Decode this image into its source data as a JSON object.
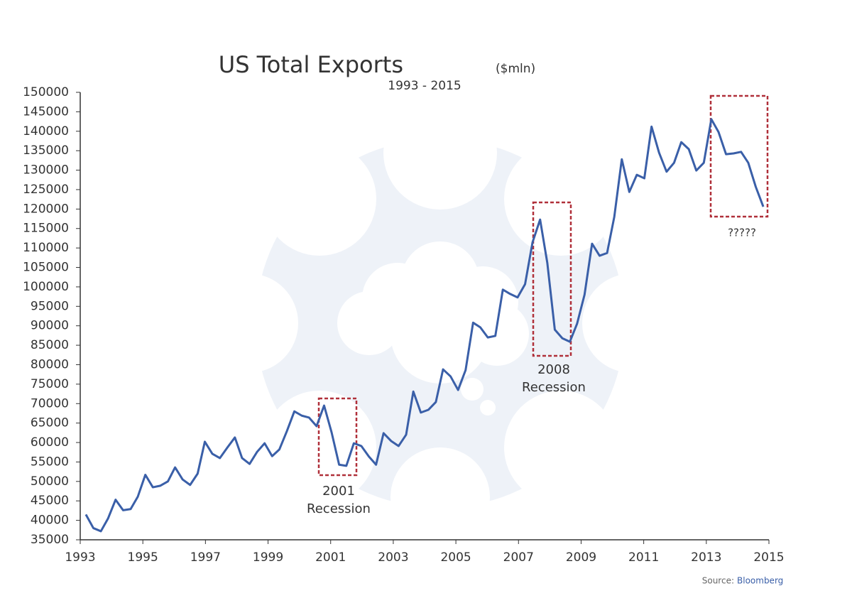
{
  "chart_data": {
    "type": "line",
    "title": "US Total Exports",
    "title_unit": "($mln)",
    "subtitle": "1993 - 2015",
    "source": {
      "label": "Source:",
      "name": "Bloomberg"
    },
    "x": [
      1993.18,
      1993.42,
      1993.66,
      1993.89,
      1994.13,
      1994.37,
      1994.61,
      1994.84,
      1995.08,
      1995.32,
      1995.56,
      1995.8,
      1996.03,
      1996.27,
      1996.51,
      1996.75,
      1996.98,
      1997.22,
      1997.46,
      1997.7,
      1997.94,
      1998.17,
      1998.41,
      1998.65,
      1998.89,
      1999.13,
      1999.36,
      1999.6,
      1999.84,
      2000.08,
      2000.31,
      2000.55,
      2000.79,
      2001.03,
      2001.27,
      2001.5,
      2001.74,
      2001.98,
      2002.22,
      2002.45,
      2002.69,
      2002.93,
      2003.17,
      2003.41,
      2003.64,
      2003.88,
      2004.12,
      2004.36,
      2004.59,
      2004.83,
      2005.07,
      2005.31,
      2005.55,
      2005.78,
      2006.02,
      2006.26,
      2006.5,
      2006.73,
      2006.97,
      2007.21,
      2007.45,
      2007.69,
      2007.92,
      2008.16,
      2008.4,
      2008.64,
      2008.87,
      2009.11,
      2009.35,
      2009.59,
      2009.83,
      2010.06,
      2010.3,
      2010.54,
      2010.78,
      2011.02,
      2011.25,
      2011.49,
      2011.73,
      2011.97,
      2012.2,
      2012.44,
      2012.68,
      2012.92,
      2013.16,
      2013.39,
      2013.63,
      2013.87,
      2014.11,
      2014.34,
      2014.58,
      2014.82
    ],
    "series": [
      {
        "name": "US Total Exports",
        "color": "#3a5fa8",
        "values": [
          41500,
          38000,
          37200,
          40500,
          45300,
          42600,
          42900,
          46100,
          51700,
          48500,
          48900,
          50000,
          53600,
          50500,
          49100,
          52000,
          60200,
          57100,
          56000,
          58700,
          61300,
          56000,
          54500,
          57600,
          59800,
          56500,
          58200,
          62900,
          68000,
          66900,
          66400,
          64200,
          69500,
          62600,
          54300,
          54000,
          59800,
          59100,
          56400,
          54300,
          62400,
          60400,
          59100,
          62000,
          73100,
          67700,
          68400,
          70400,
          78800,
          77000,
          73500,
          78600,
          90800,
          89600,
          87000,
          87400,
          99300,
          98200,
          97300,
          100700,
          111500,
          117300,
          106200,
          89000,
          86800,
          85900,
          90500,
          98000,
          111100,
          108000,
          108700,
          118000,
          132800,
          124400,
          128800,
          127900,
          141200,
          134500,
          129600,
          131900,
          137200,
          135400,
          129900,
          131900,
          143100,
          139800,
          134100,
          134300,
          134700,
          131900,
          125700,
          120600
        ]
      }
    ],
    "xlim": [
      1993,
      2015
    ],
    "xticks": [
      1993,
      1995,
      1997,
      1999,
      2001,
      2003,
      2005,
      2007,
      2009,
      2011,
      2013,
      2015
    ],
    "ylim": [
      35000,
      150000
    ],
    "yticks": [
      35000,
      40000,
      45000,
      50000,
      55000,
      60000,
      65000,
      70000,
      75000,
      80000,
      85000,
      90000,
      95000,
      100000,
      105000,
      110000,
      115000,
      120000,
      125000,
      130000,
      135000,
      140000,
      145000,
      150000
    ],
    "annotations": [
      {
        "lines": [
          "2001",
          "Recession"
        ]
      },
      {
        "lines": [
          "2008",
          "Recession"
        ]
      },
      {
        "lines": [
          "?????"
        ]
      }
    ]
  }
}
